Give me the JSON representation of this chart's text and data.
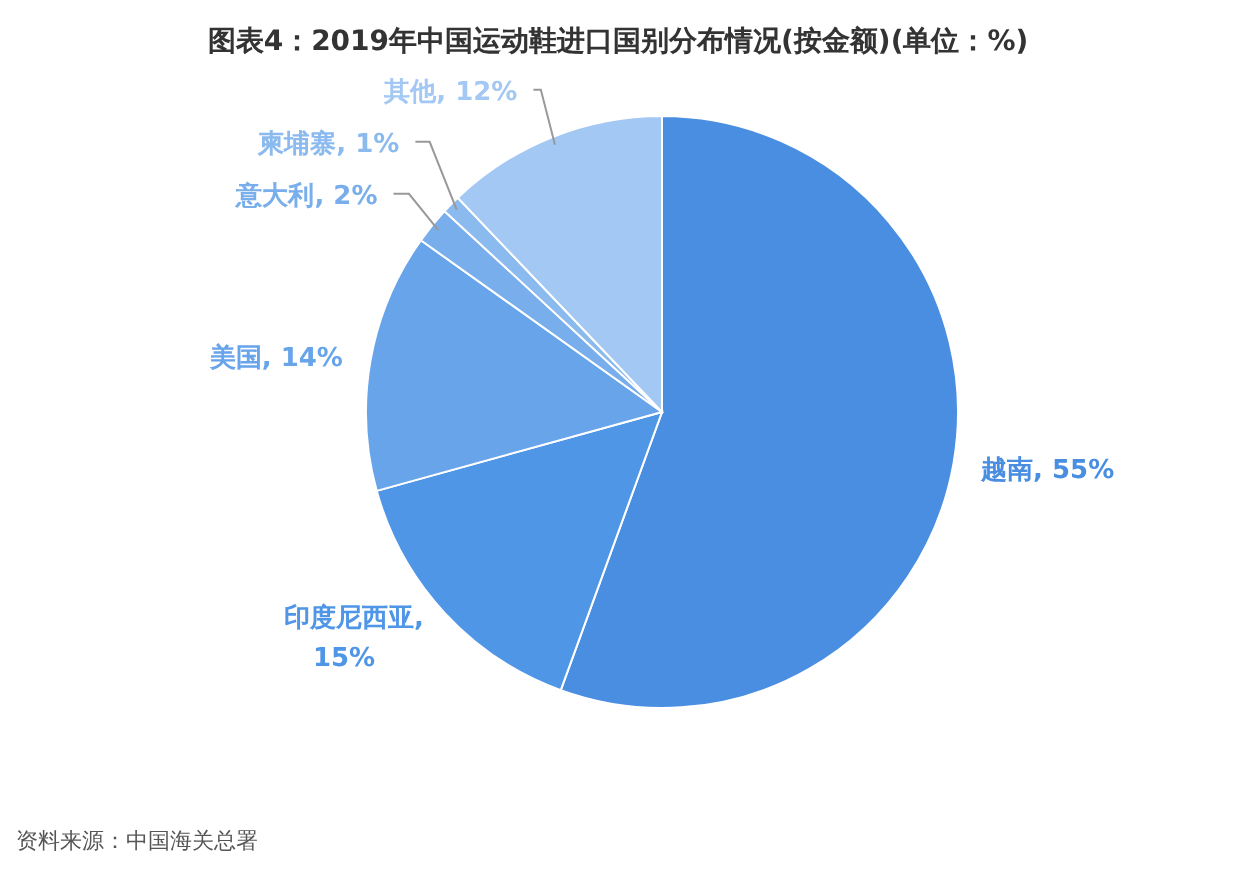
{
  "chart_data": {
    "type": "pie",
    "title": "图表4：2019年中国运动鞋进口国别分布情况(按金额)(单位：%)",
    "categories": [
      "越南",
      "印度尼西亚",
      "美国",
      "意大利",
      "柬埔寨",
      "其他"
    ],
    "values": [
      55,
      15,
      14,
      2,
      1,
      12
    ],
    "value_labels": [
      ", 55%",
      ",\n15%",
      ", 14%",
      ", 2%",
      ", 1%",
      ", 12%"
    ],
    "colors": [
      "#4a8ee2",
      "#5096e6",
      "#68a4ea",
      "#79aeec",
      "#8bbaef",
      "#a3c8f3"
    ],
    "annotations": [
      "资料来源：中国海关总署"
    ]
  }
}
